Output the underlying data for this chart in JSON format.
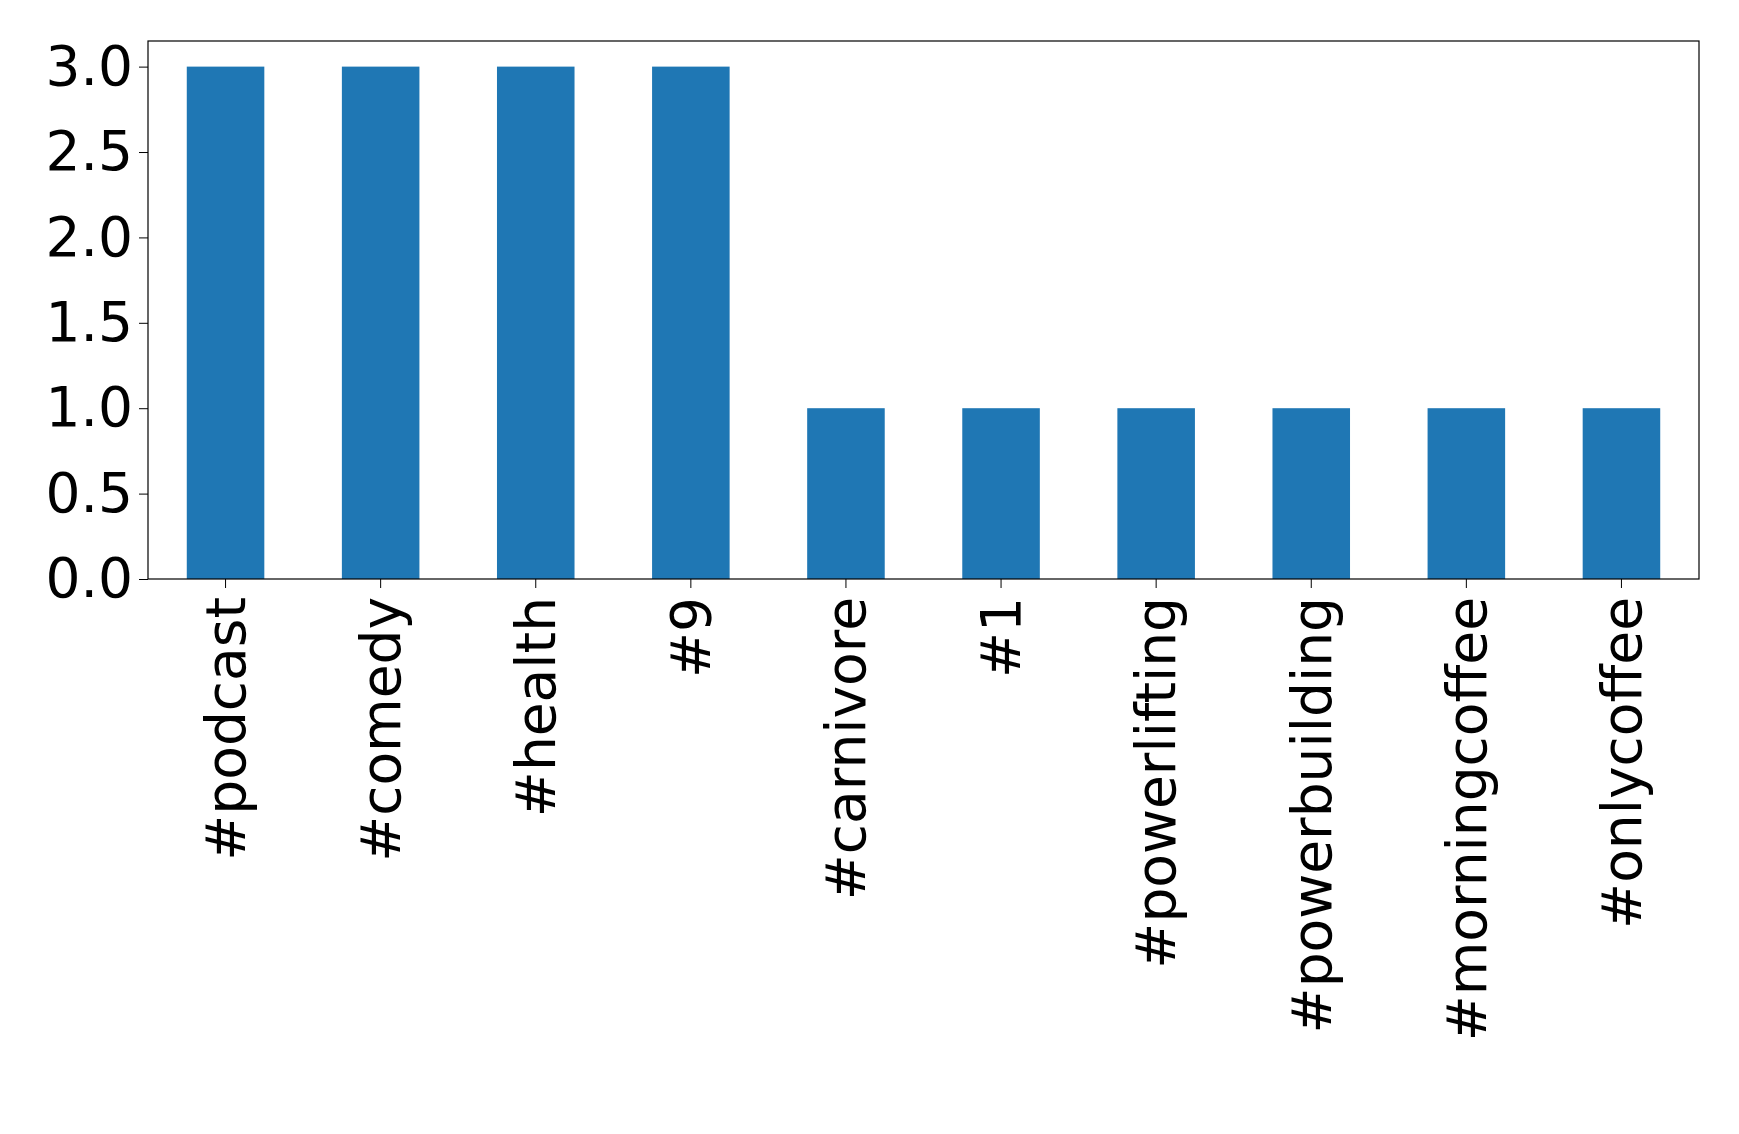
{
  "chart_data": {
    "type": "bar",
    "categories": [
      "#podcast",
      "#comedy",
      "#health",
      "#9",
      "#carnivore",
      "#1",
      "#powerlifting",
      "#powerbuilding",
      "#morningcoffee",
      "#onlycoffee"
    ],
    "values": [
      3,
      3,
      3,
      3,
      1,
      1,
      1,
      1,
      1,
      1
    ],
    "color": "#1f77b4",
    "ylim": [
      0,
      3.15
    ],
    "yticks": [
      {
        "value": 0,
        "label": "0.0"
      },
      {
        "value": 0.5,
        "label": "0.5"
      },
      {
        "value": 1,
        "label": "1.0"
      },
      {
        "value": 1.5,
        "label": "1.5"
      },
      {
        "value": 2,
        "label": "2.0"
      },
      {
        "value": 2.5,
        "label": "2.5"
      },
      {
        "value": 3,
        "label": "3.0"
      }
    ],
    "grid": false
  }
}
